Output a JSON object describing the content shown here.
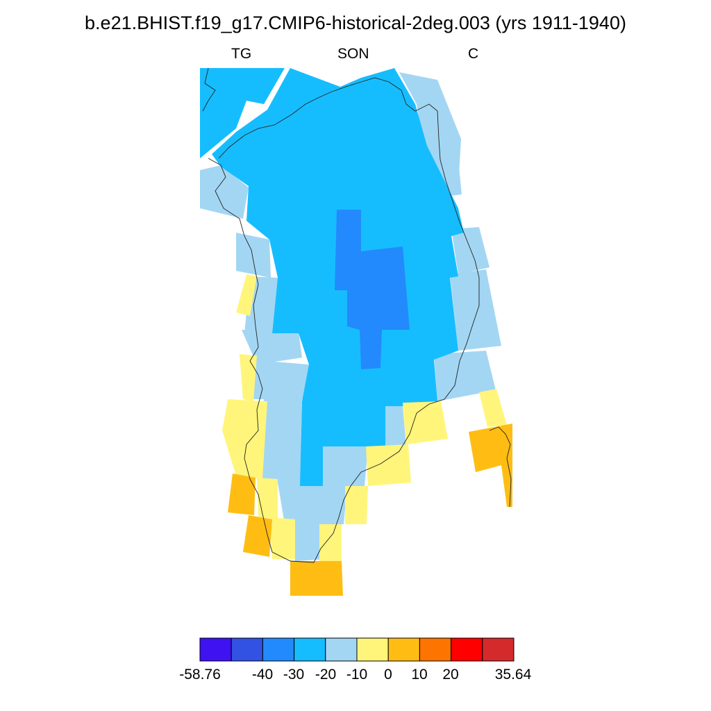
{
  "title": "b.e21.BHIST.f19_g17.CMIP6-historical-2deg.003 (yrs 1911-1940)",
  "subtitle_left": "TG",
  "subtitle_center": "SON",
  "subtitle_right": "C",
  "colorbar": {
    "colors": [
      "#3f12f2",
      "#3152e3",
      "#228afd",
      "#16bdfe",
      "#a3d6f3",
      "#fff57b",
      "#ffbd14",
      "#fe7400",
      "#fe0000",
      "#d52a2b"
    ],
    "labels": [
      "-58.76",
      "-40",
      "-30",
      "-20",
      "-10",
      "0",
      "10",
      "20",
      "35.64"
    ]
  },
  "legend": {
    "c1": "#228afd",
    "c2": "#16bdfe",
    "c3": "#a3d6f3",
    "c4": "#fff57b",
    "c5": "#ffbd14"
  }
}
